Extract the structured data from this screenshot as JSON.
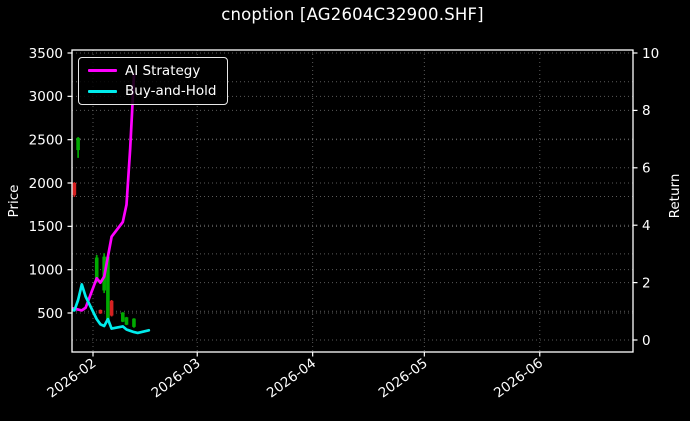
{
  "chart_data": {
    "type": "line+candlestick",
    "title": "cnoption [AG2604C32900.SHF]",
    "xlabel": "",
    "ylabel_left": "Price",
    "ylabel_right": "Return",
    "background": "#000000",
    "text_color": "#ffffff",
    "grid_color": "#5a5a5a",
    "grid": true,
    "legend_position": "upper left",
    "price_ticks": [
      500,
      1000,
      1500,
      2000,
      2500,
      3000,
      3500
    ],
    "return_ticks": [
      0,
      2,
      4,
      6,
      8,
      10
    ],
    "return_gridlines": [
      0,
      1,
      2,
      3,
      4,
      5,
      6,
      7,
      8,
      9,
      10
    ],
    "x_ticks": [
      "2026-02",
      "2026-03",
      "2026-04",
      "2026-05",
      "2026-06"
    ],
    "x_range": [
      "2026-01-26",
      "2026-06-25"
    ],
    "ylim_price": [
      50,
      3535
    ],
    "ylim_return": [
      -0.42,
      10.1
    ],
    "legend": {
      "items": [
        {
          "label": "AI Strategy",
          "color": "#ff00ff"
        },
        {
          "label": "Buy-and-Hold",
          "color": "#00ecec"
        }
      ]
    },
    "series": [
      {
        "name": "AI Strategy",
        "color": "#ff00ff",
        "axis": "left",
        "points": [
          [
            "2026-01-26",
            560
          ],
          [
            "2026-01-27",
            550
          ],
          [
            "2026-01-28",
            540
          ],
          [
            "2026-01-29",
            530
          ],
          [
            "2026-01-30",
            560
          ],
          [
            "2026-02-02",
            900
          ],
          [
            "2026-02-03",
            850
          ],
          [
            "2026-02-04",
            920
          ],
          [
            "2026-02-05",
            1150
          ],
          [
            "2026-02-06",
            1380
          ],
          [
            "2026-02-09",
            1550
          ],
          [
            "2026-02-10",
            1750
          ],
          [
            "2026-02-11",
            2400
          ],
          [
            "2026-02-12",
            3250
          ]
        ]
      },
      {
        "name": "Buy-and-Hold",
        "color": "#00ecec",
        "axis": "left",
        "points": [
          [
            "2026-01-26",
            540
          ],
          [
            "2026-01-27",
            530
          ],
          [
            "2026-01-28",
            650
          ],
          [
            "2026-01-29",
            830
          ],
          [
            "2026-01-30",
            690
          ],
          [
            "2026-02-02",
            430
          ],
          [
            "2026-02-03",
            370
          ],
          [
            "2026-02-04",
            350
          ],
          [
            "2026-02-05",
            430
          ],
          [
            "2026-02-06",
            320
          ],
          [
            "2026-02-09",
            345
          ],
          [
            "2026-02-10",
            310
          ],
          [
            "2026-02-11",
            295
          ],
          [
            "2026-02-12",
            280
          ],
          [
            "2026-02-13",
            270
          ],
          [
            "2026-02-16",
            300
          ]
        ]
      }
    ],
    "candle_colors": {
      "up": "#00aa00",
      "down": "#d62222"
    },
    "candles": [
      {
        "date": "2026-01-27",
        "open": 2000,
        "high": 2010,
        "low": 1840,
        "close": 1860,
        "dir": "down"
      },
      {
        "date": "2026-01-28",
        "open": 2380,
        "high": 2530,
        "low": 2290,
        "close": 2520,
        "dir": "up"
      },
      {
        "date": "2026-02-02",
        "open": 880,
        "high": 1170,
        "low": 850,
        "close": 1140,
        "dir": "up"
      },
      {
        "date": "2026-02-03",
        "open": 535,
        "high": 540,
        "low": 490,
        "close": 495,
        "dir": "down"
      },
      {
        "date": "2026-02-04",
        "open": 760,
        "high": 1190,
        "low": 730,
        "close": 1150,
        "dir": "up"
      },
      {
        "date": "2026-02-05",
        "open": 420,
        "high": 1170,
        "low": 400,
        "close": 1150,
        "dir": "up"
      },
      {
        "date": "2026-02-06",
        "open": 640,
        "high": 650,
        "low": 460,
        "close": 470,
        "dir": "down"
      },
      {
        "date": "2026-02-09",
        "open": 400,
        "high": 510,
        "low": 395,
        "close": 505,
        "dir": "up"
      },
      {
        "date": "2026-02-10",
        "open": 365,
        "high": 455,
        "low": 360,
        "close": 450,
        "dir": "up"
      },
      {
        "date": "2026-02-12",
        "open": 340,
        "high": 440,
        "low": 330,
        "close": 435,
        "dir": "up"
      }
    ]
  }
}
